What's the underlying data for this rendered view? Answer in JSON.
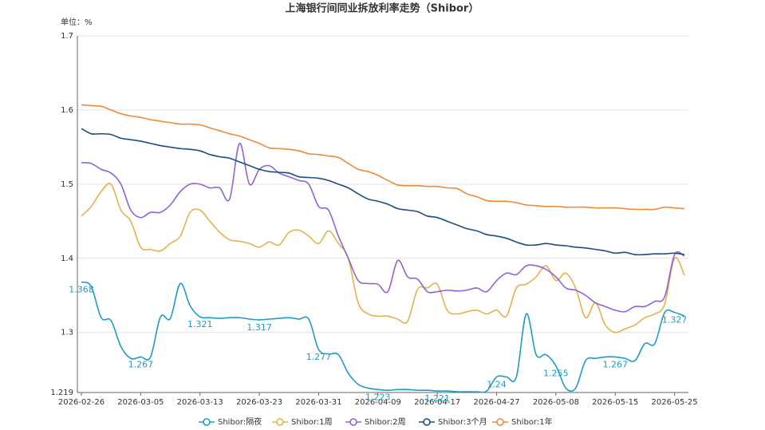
{
  "chart_data": {
    "type": "line",
    "title": "上海银行间同业拆放利率走势（Shibor）",
    "y_label": "单位：%",
    "categories": [
      "2026-02-26",
      null,
      null,
      null,
      null,
      null,
      "2026-03-05",
      null,
      null,
      null,
      null,
      null,
      "2026-03-13",
      null,
      null,
      null,
      null,
      null,
      "2026-03-23",
      null,
      null,
      null,
      null,
      null,
      "2026-03-31",
      null,
      null,
      null,
      null,
      null,
      "2026-04-09",
      null,
      null,
      null,
      null,
      null,
      "2026-04-17",
      null,
      null,
      null,
      null,
      null,
      "2026-04-27",
      null,
      null,
      null,
      null,
      null,
      "2026-05-08",
      null,
      null,
      null,
      null,
      null,
      "2026-05-15",
      null,
      null,
      null,
      null,
      null,
      "2026-05-25",
      null
    ],
    "series": [
      {
        "name": "Shibor:隔夜",
        "color": "#1e9ac6",
        "label_interval": 6,
        "values": [
          1.368,
          1.362,
          1.32,
          1.316,
          1.281,
          1.265,
          1.267,
          1.267,
          1.321,
          1.319,
          1.366,
          1.336,
          1.321,
          1.32,
          1.319,
          1.32,
          1.32,
          1.318,
          1.317,
          1.318,
          1.319,
          1.32,
          1.318,
          1.318,
          1.277,
          1.271,
          1.27,
          1.245,
          1.23,
          1.225,
          1.223,
          1.222,
          1.223,
          1.223,
          1.222,
          1.222,
          1.221,
          1.221,
          1.22,
          1.22,
          1.22,
          1.221,
          1.24,
          1.24,
          1.24,
          1.325,
          1.27,
          1.27,
          1.255,
          1.225,
          1.225,
          1.262,
          1.265,
          1.267,
          1.267,
          1.265,
          1.262,
          1.285,
          1.285,
          1.327,
          1.327,
          1.322
        ]
      },
      {
        "name": "Shibor:1周",
        "color": "#e6b04d",
        "values": [
          1.457,
          1.47,
          1.49,
          1.5,
          1.465,
          1.45,
          1.415,
          1.412,
          1.41,
          1.42,
          1.43,
          1.462,
          1.465,
          1.45,
          1.435,
          1.425,
          1.423,
          1.42,
          1.415,
          1.422,
          1.418,
          1.435,
          1.438,
          1.43,
          1.42,
          1.437,
          1.42,
          1.4,
          1.34,
          1.325,
          1.322,
          1.322,
          1.318,
          1.315,
          1.358,
          1.36,
          1.365,
          1.33,
          1.325,
          1.328,
          1.33,
          1.325,
          1.33,
          1.322,
          1.36,
          1.365,
          1.375,
          1.39,
          1.37,
          1.38,
          1.36,
          1.32,
          1.34,
          1.31,
          1.3,
          1.305,
          1.31,
          1.32,
          1.325,
          1.338,
          1.4,
          1.377
        ]
      },
      {
        "name": "Shibor:2周",
        "color": "#8e63d6",
        "values": [
          1.529,
          1.528,
          1.52,
          1.515,
          1.5,
          1.465,
          1.455,
          1.462,
          1.462,
          1.472,
          1.49,
          1.5,
          1.5,
          1.495,
          1.495,
          1.48,
          1.555,
          1.5,
          1.52,
          1.525,
          1.515,
          1.51,
          1.505,
          1.5,
          1.47,
          1.465,
          1.43,
          1.4,
          1.37,
          1.366,
          1.365,
          1.355,
          1.397,
          1.375,
          1.372,
          1.355,
          1.355,
          1.357,
          1.356,
          1.357,
          1.36,
          1.355,
          1.37,
          1.38,
          1.378,
          1.39,
          1.39,
          1.385,
          1.375,
          1.36,
          1.357,
          1.35,
          1.34,
          1.335,
          1.33,
          1.328,
          1.335,
          1.335,
          1.342,
          1.348,
          1.405,
          1.403
        ]
      },
      {
        "name": "Shibor:3个月",
        "color": "#1c4e80",
        "values": [
          1.575,
          1.568,
          1.568,
          1.567,
          1.562,
          1.56,
          1.558,
          1.555,
          1.552,
          1.55,
          1.548,
          1.547,
          1.545,
          1.54,
          1.537,
          1.535,
          1.53,
          1.525,
          1.52,
          1.517,
          1.516,
          1.515,
          1.51,
          1.509,
          1.508,
          1.505,
          1.5,
          1.495,
          1.487,
          1.48,
          1.477,
          1.473,
          1.467,
          1.465,
          1.463,
          1.457,
          1.455,
          1.45,
          1.445,
          1.44,
          1.437,
          1.432,
          1.43,
          1.427,
          1.422,
          1.418,
          1.418,
          1.42,
          1.418,
          1.417,
          1.415,
          1.414,
          1.412,
          1.41,
          1.407,
          1.408,
          1.405,
          1.405,
          1.406,
          1.406,
          1.407,
          1.405
        ]
      },
      {
        "name": "Shibor:1年",
        "color": "#ef8a35",
        "values": [
          1.607,
          1.606,
          1.605,
          1.6,
          1.595,
          1.592,
          1.59,
          1.587,
          1.585,
          1.583,
          1.581,
          1.581,
          1.58,
          1.576,
          1.572,
          1.568,
          1.565,
          1.56,
          1.555,
          1.549,
          1.548,
          1.547,
          1.545,
          1.541,
          1.54,
          1.538,
          1.536,
          1.528,
          1.52,
          1.517,
          1.512,
          1.505,
          1.499,
          1.498,
          1.498,
          1.497,
          1.497,
          1.495,
          1.494,
          1.487,
          1.483,
          1.478,
          1.477,
          1.477,
          1.475,
          1.472,
          1.471,
          1.47,
          1.47,
          1.469,
          1.469,
          1.469,
          1.468,
          1.468,
          1.468,
          1.467,
          1.466,
          1.466,
          1.466,
          1.469,
          1.468,
          1.467
        ]
      }
    ],
    "ylim": [
      1.219,
      1.7
    ],
    "yticks": [
      {
        "value": 1.219,
        "label": "1.219"
      },
      1.3,
      1.4,
      1.5,
      1.6,
      1.7
    ],
    "grid": true,
    "legend": "bottom",
    "smooth": true
  }
}
